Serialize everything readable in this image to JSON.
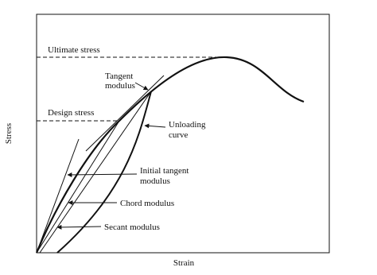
{
  "labels": {
    "ultimate_stress": "Ultimate stress",
    "tangent_modulus": [
      "Tangent",
      "modulus"
    ],
    "design_stress": "Design stress",
    "unloading_curve": [
      "Unloading",
      "curve"
    ],
    "initial_tangent_modulus": [
      "Initial tangent",
      "modulus"
    ],
    "chord_modulus": "Chord modulus",
    "secant_modulus": "Secant modulus",
    "y_axis": "Stress",
    "x_axis": "Strain"
  }
}
